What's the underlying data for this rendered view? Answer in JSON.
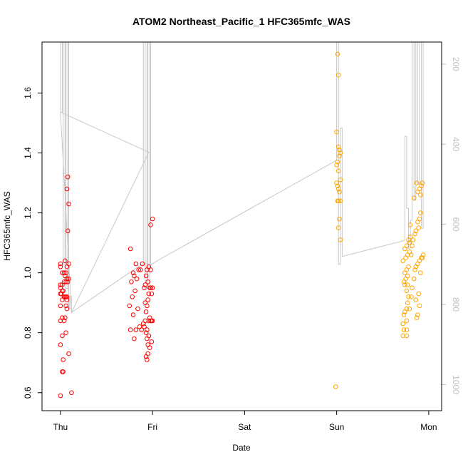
{
  "chart_data": {
    "type": "scatter",
    "title": "ATOM2 Northeast_Pacific_1 HFC365mfc_WAS",
    "xlabel": "Date",
    "ylabel": "HFC365mfc_WAS",
    "x_ticks": [
      "Thu",
      "Fri",
      "Sat",
      "Sun",
      "Mon"
    ],
    "x_tick_days": [
      0,
      1,
      2,
      3,
      4
    ],
    "xlim": [
      -0.2,
      4.14
    ],
    "ylim": [
      0.54,
      1.77
    ],
    "y_ticks": [
      0.6,
      0.8,
      1.0,
      1.2,
      1.4,
      1.6
    ],
    "y_tick_labels": [
      "0.6",
      "0.8",
      "1.0",
      "1.2",
      "1.4",
      "1.6"
    ],
    "y2_label": "",
    "y2_lim": [
      1065,
      145
    ],
    "y2_ticks": [
      200,
      400,
      600,
      800,
      1000
    ],
    "y2_tick_labels": [
      "200",
      "400",
      "600",
      "800",
      "1000"
    ],
    "grid": false,
    "legend": "none",
    "colors": {
      "red_points": "#ff0000",
      "orange_points": "#ffa500",
      "altitude_line": "#c8c8c8",
      "axis": "#000000",
      "right_axis": "#c0c0c0"
    },
    "series": [
      {
        "color": "#ff0000",
        "points": [
          [
            0.0,
            0.59
          ],
          [
            0.12,
            0.6
          ],
          [
            0.02,
            0.67
          ],
          [
            0.03,
            0.67
          ],
          [
            0.09,
            0.73
          ],
          [
            0.03,
            0.71
          ],
          [
            0.0,
            0.76
          ],
          [
            0.02,
            0.79
          ],
          [
            0.06,
            0.8
          ],
          [
            0.0,
            0.84
          ],
          [
            0.04,
            0.84
          ],
          [
            0.02,
            0.85
          ],
          [
            0.05,
            0.85
          ],
          [
            0.07,
            0.88
          ],
          [
            0.0,
            0.89
          ],
          [
            0.06,
            0.89
          ],
          [
            0.07,
            0.91
          ],
          [
            0.02,
            0.91
          ],
          [
            0.04,
            0.92
          ],
          [
            0.05,
            0.92
          ],
          [
            0.06,
            0.92
          ],
          [
            0.07,
            0.92
          ],
          [
            0.0,
            0.93
          ],
          [
            0.01,
            0.93
          ],
          [
            0.02,
            0.94
          ],
          [
            0.03,
            0.94
          ],
          [
            0.0,
            0.95
          ],
          [
            0.0,
            0.96
          ],
          [
            0.02,
            0.96
          ],
          [
            0.04,
            0.97
          ],
          [
            0.06,
            0.97
          ],
          [
            0.08,
            0.97
          ],
          [
            0.09,
            0.98
          ],
          [
            0.07,
            0.98
          ],
          [
            0.05,
            0.99
          ],
          [
            0.02,
            1.0
          ],
          [
            0.04,
            1.0
          ],
          [
            0.06,
            1.0
          ],
          [
            0.0,
            1.02
          ],
          [
            0.07,
            1.02
          ],
          [
            0.09,
            1.03
          ],
          [
            0.0,
            1.03
          ],
          [
            0.05,
            1.04
          ],
          [
            0.08,
            1.14
          ],
          [
            0.09,
            1.23
          ],
          [
            0.07,
            1.28
          ],
          [
            0.08,
            1.32
          ],
          [
            0.75,
            0.89
          ],
          [
            0.76,
            0.81
          ],
          [
            0.8,
            0.78
          ],
          [
            0.82,
            0.81
          ],
          [
            0.79,
            0.86
          ],
          [
            0.84,
            0.88
          ],
          [
            0.86,
            0.82
          ],
          [
            0.88,
            0.81
          ],
          [
            0.78,
            0.92
          ],
          [
            0.81,
            0.94
          ],
          [
            0.8,
            0.99
          ],
          [
            0.77,
            0.97
          ],
          [
            0.79,
            1.0
          ],
          [
            0.83,
            0.98
          ],
          [
            0.85,
            1.01
          ],
          [
            0.87,
            1.01
          ],
          [
            0.89,
            1.03
          ],
          [
            0.76,
            1.08
          ],
          [
            0.82,
            1.03
          ],
          [
            0.9,
            0.83
          ],
          [
            0.91,
            0.82
          ],
          [
            0.92,
            0.84
          ],
          [
            0.93,
            0.8
          ],
          [
            0.94,
            0.78
          ],
          [
            0.95,
            0.76
          ],
          [
            0.96,
            0.84
          ],
          [
            0.97,
            0.85
          ],
          [
            0.98,
            0.84
          ],
          [
            0.99,
            0.84
          ],
          [
            1.0,
            0.84
          ],
          [
            0.92,
            0.9
          ],
          [
            0.93,
            0.87
          ],
          [
            0.94,
            0.89
          ],
          [
            0.95,
            0.91
          ],
          [
            0.96,
            0.93
          ],
          [
            0.97,
            0.95
          ],
          [
            0.98,
            0.95
          ],
          [
            0.99,
            0.93
          ],
          [
            1.0,
            0.95
          ],
          [
            0.91,
            0.95
          ],
          [
            0.93,
            0.99
          ],
          [
            0.94,
            1.01
          ],
          [
            0.96,
            1.02
          ],
          [
            0.98,
            1.01
          ],
          [
            0.93,
            0.72
          ],
          [
            0.94,
            0.71
          ],
          [
            0.95,
            0.73
          ],
          [
            0.97,
            0.75
          ],
          [
            0.99,
            0.77
          ],
          [
            0.96,
            0.79
          ],
          [
            0.94,
            0.81
          ],
          [
            0.92,
            0.96
          ],
          [
            0.95,
            0.97
          ],
          [
            0.98,
            1.16
          ],
          [
            1.0,
            1.18
          ]
        ]
      },
      {
        "color": "#ffa500",
        "points": [
          [
            2.99,
            0.62
          ],
          [
            3.04,
            1.11
          ],
          [
            3.02,
            1.15
          ],
          [
            3.03,
            1.18
          ],
          [
            3.01,
            1.24
          ],
          [
            3.02,
            1.24
          ],
          [
            3.04,
            1.24
          ],
          [
            3.03,
            1.27
          ],
          [
            3.02,
            1.28
          ],
          [
            3.0,
            1.3
          ],
          [
            3.01,
            1.29
          ],
          [
            3.04,
            1.31
          ],
          [
            3.02,
            1.34
          ],
          [
            3.0,
            1.36
          ],
          [
            3.01,
            1.37
          ],
          [
            3.03,
            1.39
          ],
          [
            3.04,
            1.4
          ],
          [
            3.03,
            1.41
          ],
          [
            3.02,
            1.42
          ],
          [
            3.0,
            1.47
          ],
          [
            3.02,
            1.66
          ],
          [
            3.01,
            1.73
          ],
          [
            3.72,
            0.79
          ],
          [
            3.76,
            0.79
          ],
          [
            3.73,
            0.81
          ],
          [
            3.76,
            0.81
          ],
          [
            3.72,
            0.83
          ],
          [
            3.76,
            0.84
          ],
          [
            3.73,
            0.86
          ],
          [
            3.74,
            0.87
          ],
          [
            3.76,
            0.88
          ],
          [
            3.77,
            0.9
          ],
          [
            3.78,
            0.92
          ],
          [
            3.76,
            0.94
          ],
          [
            3.74,
            0.96
          ],
          [
            3.77,
            0.96
          ],
          [
            3.73,
            0.97
          ],
          [
            3.75,
            0.98
          ],
          [
            3.77,
            0.99
          ],
          [
            3.74,
            1.0
          ],
          [
            3.76,
            1.01
          ],
          [
            3.78,
            1.02
          ],
          [
            3.72,
            1.04
          ],
          [
            3.75,
            1.05
          ],
          [
            3.77,
            1.06
          ],
          [
            3.79,
            1.07
          ],
          [
            3.74,
            1.08
          ],
          [
            3.76,
            1.09
          ],
          [
            3.78,
            1.11
          ],
          [
            3.8,
            1.12
          ],
          [
            3.79,
            0.88
          ],
          [
            3.81,
            0.92
          ],
          [
            3.82,
            0.95
          ],
          [
            3.84,
            0.98
          ],
          [
            3.85,
            1.01
          ],
          [
            3.86,
            1.02
          ],
          [
            3.88,
            1.03
          ],
          [
            3.9,
            1.04
          ],
          [
            3.92,
            1.05
          ],
          [
            3.87,
            0.85
          ],
          [
            3.88,
            0.86
          ],
          [
            3.9,
            0.89
          ],
          [
            3.86,
            0.91
          ],
          [
            3.89,
            0.93
          ],
          [
            3.91,
            1.0
          ],
          [
            3.93,
            1.05
          ],
          [
            3.94,
            1.06
          ],
          [
            3.86,
            1.14
          ],
          [
            3.88,
            1.17
          ],
          [
            3.9,
            1.18
          ],
          [
            3.91,
            1.2
          ],
          [
            3.84,
            1.25
          ],
          [
            3.88,
            1.27
          ],
          [
            3.9,
            1.28
          ],
          [
            3.92,
            1.29
          ],
          [
            3.93,
            1.3
          ],
          [
            3.91,
            1.26
          ],
          [
            3.87,
            1.3
          ],
          [
            3.85,
            1.13
          ],
          [
            3.89,
            1.15
          ],
          [
            3.82,
            1.09
          ],
          [
            3.83,
            1.11
          ],
          [
            3.8,
            1.16
          ],
          [
            3.79,
            1.1
          ],
          [
            3.81,
            1.06
          ]
        ]
      }
    ],
    "altitude_line": [
      [
        0.0,
        145
      ],
      [
        0.0,
        320
      ],
      [
        0.02,
        320
      ],
      [
        0.02,
        145
      ],
      [
        0.03,
        145
      ],
      [
        0.03,
        700
      ],
      [
        0.05,
        700
      ],
      [
        0.05,
        145
      ],
      [
        0.06,
        145
      ],
      [
        0.06,
        760
      ],
      [
        0.08,
        760
      ],
      [
        0.08,
        145
      ],
      [
        0.09,
        145
      ],
      [
        0.09,
        810
      ],
      [
        0.1,
        810
      ],
      [
        0.1,
        780
      ],
      [
        0.12,
        780
      ],
      [
        0.12,
        820
      ],
      [
        0.0,
        320
      ],
      [
        0.96,
        420
      ],
      [
        0.12,
        820
      ],
      [
        0.88,
        700
      ],
      [
        0.9,
        700
      ],
      [
        0.9,
        145
      ],
      [
        0.92,
        145
      ],
      [
        0.92,
        740
      ],
      [
        0.94,
        740
      ],
      [
        0.94,
        145
      ],
      [
        0.95,
        145
      ],
      [
        0.95,
        760
      ],
      [
        0.97,
        760
      ],
      [
        0.97,
        145
      ],
      [
        0.98,
        145
      ],
      [
        0.98,
        420
      ],
      [
        0.98,
        700
      ],
      [
        3.0,
        440
      ],
      [
        3.0,
        145
      ],
      [
        3.02,
        145
      ],
      [
        3.02,
        700
      ],
      [
        3.04,
        700
      ],
      [
        3.04,
        360
      ],
      [
        3.06,
        360
      ],
      [
        3.06,
        680
      ],
      [
        3.06,
        680
      ],
      [
        3.74,
        640
      ],
      [
        3.74,
        380
      ],
      [
        3.76,
        380
      ],
      [
        3.76,
        560
      ],
      [
        3.78,
        560
      ],
      [
        3.78,
        660
      ],
      [
        3.8,
        660
      ],
      [
        3.8,
        590
      ],
      [
        3.82,
        590
      ],
      [
        3.82,
        145
      ],
      [
        3.84,
        145
      ],
      [
        3.84,
        540
      ],
      [
        3.86,
        540
      ],
      [
        3.86,
        145
      ],
      [
        3.88,
        145
      ],
      [
        3.88,
        500
      ],
      [
        3.9,
        500
      ],
      [
        3.9,
        145
      ],
      [
        3.92,
        145
      ],
      [
        3.92,
        610
      ],
      [
        3.94,
        610
      ],
      [
        3.94,
        145
      ]
    ]
  }
}
